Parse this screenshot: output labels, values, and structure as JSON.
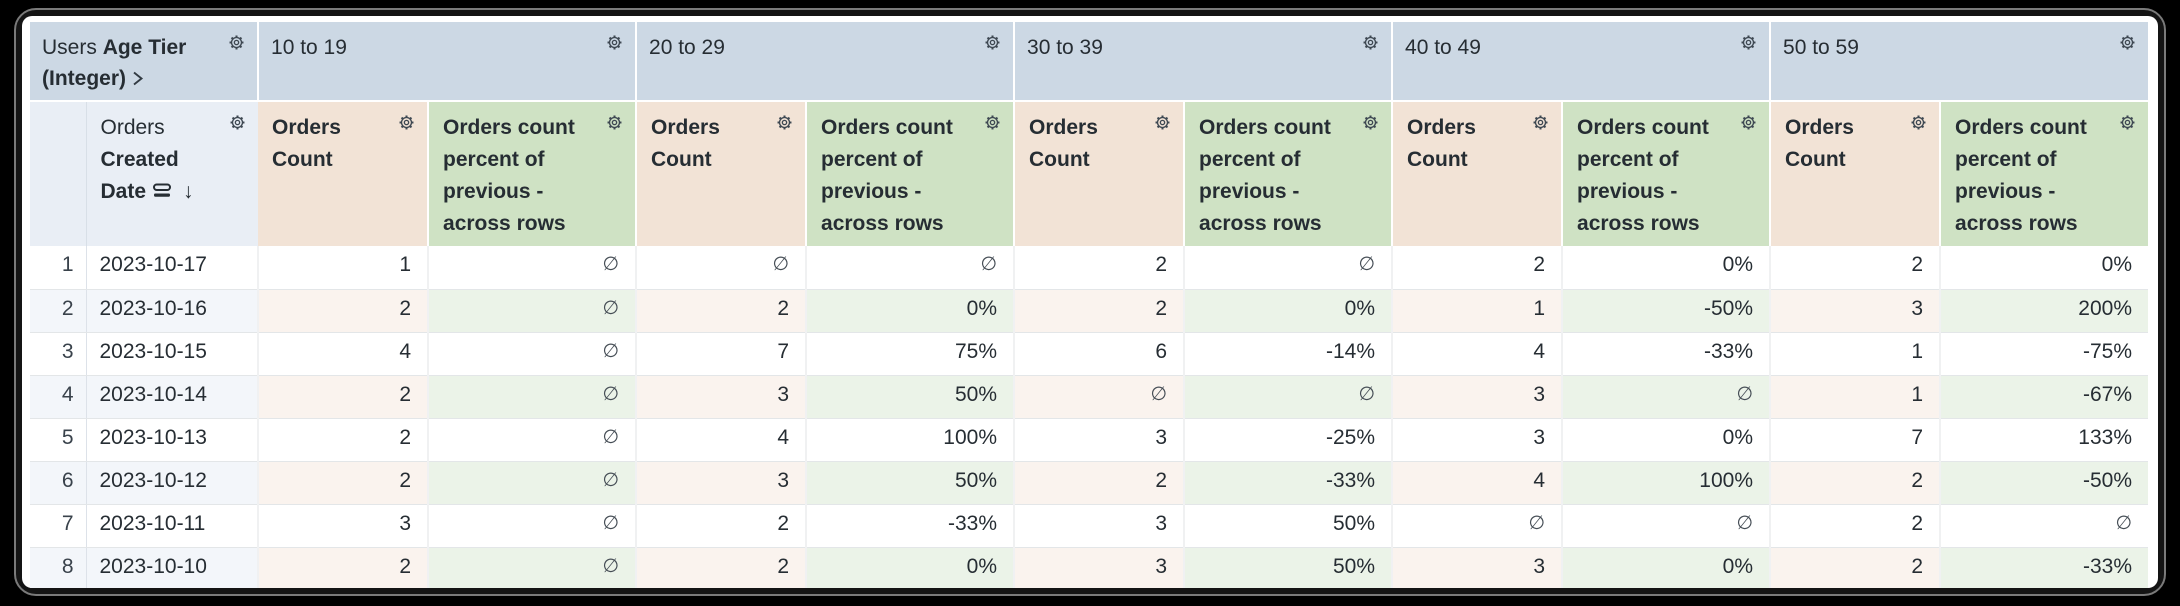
{
  "table": {
    "dimension_header": {
      "prefix": "Users",
      "field": "Age Tier (Integer)"
    },
    "row_header": {
      "prefix": "Orders",
      "field": "Created Date"
    },
    "pivots": [
      {
        "label": "10 to 19"
      },
      {
        "label": "20 to 29"
      },
      {
        "label": "30 to 39"
      },
      {
        "label": "40 to 49"
      },
      {
        "label": "50 to 59"
      }
    ],
    "measures": {
      "count": "Orders Count",
      "percent": "Orders count percent of previous - across rows"
    },
    "null_symbol": "∅",
    "rows": [
      {
        "index": "1",
        "date": "2023-10-17",
        "cells": [
          "1",
          "∅",
          "∅",
          "∅",
          "2",
          "∅",
          "2",
          "0%",
          "2",
          "0%"
        ]
      },
      {
        "index": "2",
        "date": "2023-10-16",
        "cells": [
          "2",
          "∅",
          "2",
          "0%",
          "2",
          "0%",
          "1",
          "-50%",
          "3",
          "200%"
        ]
      },
      {
        "index": "3",
        "date": "2023-10-15",
        "cells": [
          "4",
          "∅",
          "7",
          "75%",
          "6",
          "-14%",
          "4",
          "-33%",
          "1",
          "-75%"
        ]
      },
      {
        "index": "4",
        "date": "2023-10-14",
        "cells": [
          "2",
          "∅",
          "3",
          "50%",
          "∅",
          "∅",
          "3",
          "∅",
          "1",
          "-67%"
        ]
      },
      {
        "index": "5",
        "date": "2023-10-13",
        "cells": [
          "2",
          "∅",
          "4",
          "100%",
          "3",
          "-25%",
          "3",
          "0%",
          "7",
          "133%"
        ]
      },
      {
        "index": "6",
        "date": "2023-10-12",
        "cells": [
          "2",
          "∅",
          "3",
          "50%",
          "2",
          "-33%",
          "4",
          "100%",
          "2",
          "-50%"
        ]
      },
      {
        "index": "7",
        "date": "2023-10-11",
        "cells": [
          "3",
          "∅",
          "2",
          "-33%",
          "3",
          "50%",
          "∅",
          "∅",
          "2",
          "∅"
        ]
      },
      {
        "index": "8",
        "date": "2023-10-10",
        "cells": [
          "2",
          "∅",
          "2",
          "0%",
          "3",
          "50%",
          "3",
          "0%",
          "2",
          "-33%"
        ]
      }
    ],
    "colors": {
      "pivot_header": "#ccd8e4",
      "frozen_header": "#e9eef5",
      "count_header": "#f2e3d6",
      "percent_header": "#cfe2c4",
      "even_row_index": "#f3f6fa",
      "even_row_count": "#faf3ee",
      "even_row_percent": "#ebf3e8",
      "text": "#262d33"
    }
  }
}
